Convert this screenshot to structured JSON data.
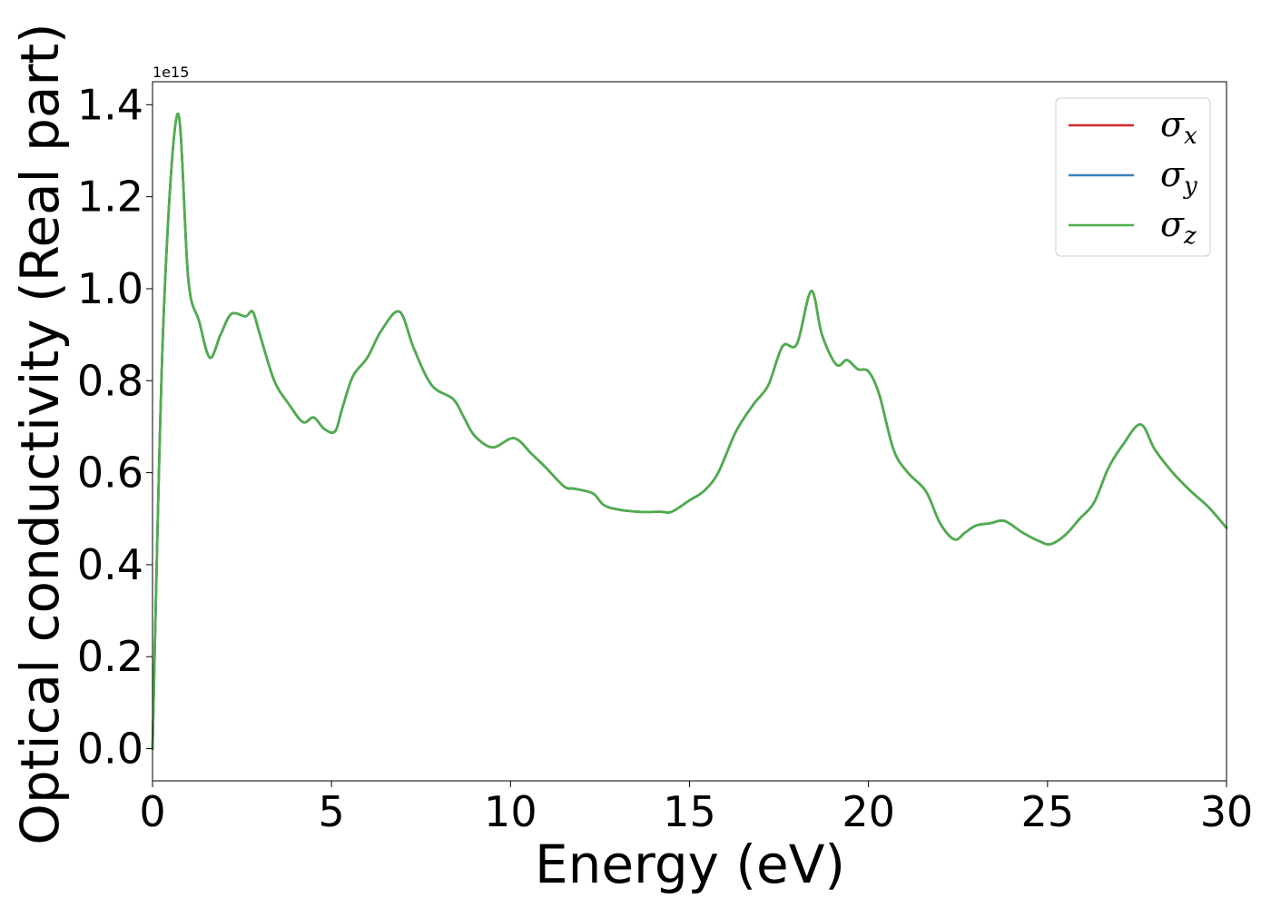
{
  "chart_data": {
    "type": "line",
    "title": "",
    "xlabel": "Energy (eV)",
    "ylabel": "Optical conductivity (Real part)",
    "y_offset_label": "1e15",
    "xlim": [
      0,
      30
    ],
    "ylim": [
      -0.07,
      1.45
    ],
    "x_ticks": [
      0,
      5,
      10,
      15,
      20,
      25,
      30
    ],
    "x_tick_labels": [
      "0",
      "5",
      "10",
      "15",
      "20",
      "25",
      "30"
    ],
    "y_ticks": [
      0.0,
      0.2,
      0.4,
      0.6,
      0.8,
      1.0,
      1.2,
      1.4
    ],
    "y_tick_labels": [
      "0.0",
      "0.2",
      "0.4",
      "0.6",
      "0.8",
      "1.0",
      "1.2",
      "1.4"
    ],
    "grid": false,
    "legend_position": "top-right",
    "x": [
      0,
      0.3,
      0.7,
      1.0,
      1.3,
      1.6,
      1.9,
      2.2,
      2.6,
      2.8,
      3.0,
      3.4,
      3.8,
      4.2,
      4.5,
      4.8,
      5.1,
      5.3,
      5.6,
      6.0,
      6.4,
      6.9,
      7.3,
      7.8,
      8.4,
      8.7,
      9.0,
      9.5,
      10.1,
      10.6,
      11.0,
      11.5,
      11.8,
      12.3,
      12.6,
      13.0,
      13.6,
      14.2,
      14.5,
      15.0,
      15.4,
      15.8,
      16.3,
      16.8,
      17.2,
      17.6,
      18.0,
      18.4,
      18.7,
      19.1,
      19.4,
      19.7,
      20.0,
      20.3,
      20.7,
      21.1,
      21.6,
      22.0,
      22.4,
      22.7,
      23.0,
      23.4,
      23.8,
      24.3,
      24.8,
      25.1,
      25.5,
      25.9,
      26.3,
      26.7,
      27.1,
      27.6,
      28.0,
      28.5,
      29.0,
      29.5,
      30.0
    ],
    "series": [
      {
        "name": "σx",
        "color": "#d62728",
        "values": [
          0.0,
          0.92,
          1.38,
          1.02,
          0.93,
          0.85,
          0.9,
          0.945,
          0.94,
          0.95,
          0.9,
          0.8,
          0.75,
          0.71,
          0.72,
          0.695,
          0.69,
          0.74,
          0.81,
          0.85,
          0.91,
          0.95,
          0.87,
          0.79,
          0.76,
          0.72,
          0.68,
          0.655,
          0.675,
          0.64,
          0.61,
          0.57,
          0.565,
          0.555,
          0.53,
          0.52,
          0.515,
          0.515,
          0.515,
          0.54,
          0.56,
          0.6,
          0.69,
          0.75,
          0.79,
          0.875,
          0.88,
          0.995,
          0.9,
          0.835,
          0.845,
          0.825,
          0.82,
          0.77,
          0.65,
          0.6,
          0.56,
          0.49,
          0.455,
          0.47,
          0.485,
          0.49,
          0.495,
          0.47,
          0.45,
          0.445,
          0.465,
          0.5,
          0.535,
          0.61,
          0.66,
          0.705,
          0.65,
          0.6,
          0.56,
          0.525,
          0.48
        ]
      },
      {
        "name": "σy",
        "color": "#3a7eb8",
        "values": [
          0.0,
          0.92,
          1.38,
          1.02,
          0.93,
          0.85,
          0.9,
          0.945,
          0.94,
          0.95,
          0.9,
          0.8,
          0.75,
          0.71,
          0.72,
          0.695,
          0.69,
          0.74,
          0.81,
          0.85,
          0.91,
          0.95,
          0.87,
          0.79,
          0.76,
          0.72,
          0.68,
          0.655,
          0.675,
          0.64,
          0.61,
          0.57,
          0.565,
          0.555,
          0.53,
          0.52,
          0.515,
          0.515,
          0.515,
          0.54,
          0.56,
          0.6,
          0.69,
          0.75,
          0.79,
          0.875,
          0.88,
          0.995,
          0.9,
          0.835,
          0.845,
          0.825,
          0.82,
          0.77,
          0.65,
          0.6,
          0.56,
          0.49,
          0.455,
          0.47,
          0.485,
          0.49,
          0.495,
          0.47,
          0.45,
          0.445,
          0.465,
          0.5,
          0.535,
          0.61,
          0.66,
          0.705,
          0.65,
          0.6,
          0.56,
          0.525,
          0.48
        ]
      },
      {
        "name": "σz",
        "color": "#4daf4a",
        "values": [
          0.0,
          0.92,
          1.38,
          1.02,
          0.93,
          0.85,
          0.9,
          0.945,
          0.94,
          0.95,
          0.9,
          0.8,
          0.75,
          0.71,
          0.72,
          0.695,
          0.69,
          0.74,
          0.81,
          0.85,
          0.91,
          0.95,
          0.87,
          0.79,
          0.76,
          0.72,
          0.68,
          0.655,
          0.675,
          0.64,
          0.61,
          0.57,
          0.565,
          0.555,
          0.53,
          0.52,
          0.515,
          0.515,
          0.515,
          0.54,
          0.56,
          0.6,
          0.69,
          0.75,
          0.79,
          0.875,
          0.88,
          0.995,
          0.9,
          0.835,
          0.845,
          0.825,
          0.82,
          0.77,
          0.65,
          0.6,
          0.56,
          0.49,
          0.455,
          0.47,
          0.485,
          0.49,
          0.495,
          0.47,
          0.45,
          0.445,
          0.465,
          0.5,
          0.535,
          0.61,
          0.66,
          0.705,
          0.65,
          0.6,
          0.56,
          0.525,
          0.48
        ]
      }
    ],
    "legend": {
      "entries": [
        {
          "symbol": "σ",
          "sub": "x"
        },
        {
          "symbol": "σ",
          "sub": "y"
        },
        {
          "symbol": "σ",
          "sub": "z"
        }
      ]
    }
  }
}
